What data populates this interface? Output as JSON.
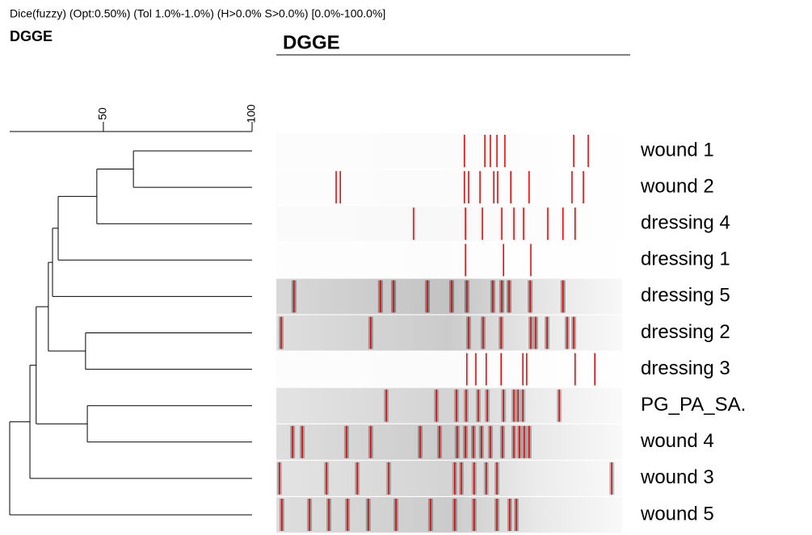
{
  "chart_data": {
    "type": "dendrogram",
    "header": "Dice(fuzzy) (Opt:0.50%) (Tol 1.0%-1.0%) (H>0.0% S>0.0%) [0.0%-100.0%]",
    "title": "DGGE",
    "gel_title": "DGGE",
    "xlim": [
      18.5,
      100
    ],
    "xticks": [
      50,
      100
    ],
    "leaves": [
      "wound 1",
      "wound 2",
      "dressing 4",
      "dressing 1",
      "dressing 5",
      "dressing 2",
      "dressing 3",
      "PG_PA_SA.",
      "wound 4",
      "wound 3",
      "wound 5"
    ],
    "merges": [
      {
        "children": [
          [
            0,
            0
          ],
          [
            1,
            1
          ]
        ],
        "similarity": 60.1
      },
      {
        "children": [
          [
            0,
            1
          ],
          [
            2,
            2
          ]
        ],
        "similarity": 47.8
      },
      {
        "children": [
          [
            0,
            2
          ],
          [
            3,
            3
          ]
        ],
        "similarity": 34.8
      },
      {
        "children": [
          [
            0,
            3
          ],
          [
            4,
            4
          ]
        ],
        "similarity": 32.9
      },
      {
        "children": [
          [
            5,
            5
          ],
          [
            6,
            6
          ]
        ],
        "similarity": 44.0
      },
      {
        "children": [
          [
            0,
            4
          ],
          [
            5,
            6
          ]
        ],
        "similarity": 31.5
      },
      {
        "children": [
          [
            7,
            7
          ],
          [
            8,
            8
          ]
        ],
        "similarity": 44.6
      },
      {
        "children": [
          [
            0,
            6
          ],
          [
            7,
            8
          ]
        ],
        "similarity": 27.4
      },
      {
        "children": [
          [
            0,
            8
          ],
          [
            9,
            9
          ]
        ],
        "similarity": 25.3
      },
      {
        "children": [
          [
            0,
            9
          ],
          [
            10,
            10
          ]
        ],
        "similarity": 18.5
      }
    ],
    "band_color": "#e00000",
    "bands": [
      [
        54.4,
        60.3,
        61.9,
        63.8,
        66.1,
        86.0,
        90.2
      ],
      [
        17.3,
        18.5,
        54.4,
        55.6,
        58.9,
        62.9,
        64.0,
        67.8,
        73.1,
        85.5,
        88.8
      ],
      [
        39.7,
        54.7,
        59.6,
        65.2,
        68.7,
        71.5,
        78.5,
        82.9,
        86.4
      ],
      [
        54.7,
        65.7,
        73.6
      ],
      [
        5.1,
        30.1,
        33.9,
        43.7,
        50.7,
        55.1,
        62.6,
        65.2,
        67.3,
        73.4,
        82.9
      ],
      [
        1.4,
        27.3,
        55.6,
        59.8,
        65.0,
        73.6,
        75.0,
        78.3,
        84.1,
        86.0
      ],
      [
        55.1,
        57.7,
        60.7,
        65.0,
        71.3,
        72.4,
        86.4,
        92.1
      ],
      [
        31.8,
        46.3,
        52.1,
        54.9,
        58.4,
        61.0,
        65.7,
        68.7,
        69.9,
        71.3,
        81.8
      ],
      [
        4.7,
        7.5,
        20.3,
        27.3,
        41.6,
        47.2,
        52.3,
        54.7,
        57.0,
        59.3,
        61.9,
        65.4,
        68.7,
        70.3,
        71.7,
        73.1
      ],
      [
        0.9,
        14.5,
        23.4,
        32.5,
        51.6,
        53.5,
        57.2,
        60.7,
        63.8,
        97.0
      ],
      [
        1.6,
        9.6,
        15.2,
        20.6,
        26.6,
        34.6,
        44.6,
        51.6,
        57.2,
        63.8,
        67.5,
        69.4
      ]
    ]
  }
}
